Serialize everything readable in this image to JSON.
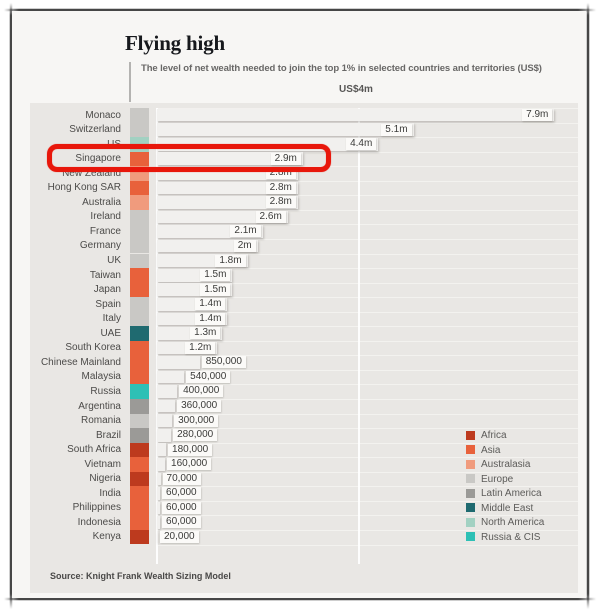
{
  "header": {
    "title": "Flying high",
    "subtitle": "The level of net wealth needed to join the top 1% in selected countries and territories (US$)",
    "gridline_label": "US$4m"
  },
  "source": "Source: Knight Frank Wealth Sizing Model",
  "highlight": {
    "country": "Singapore",
    "box_color": "#e8170b"
  },
  "chart_data": {
    "type": "bar",
    "orientation": "horizontal",
    "title": "Flying high",
    "subtitle": "The level of net wealth needed to join the top 1% in selected countries and territories (US$)",
    "unit": "US$ millions",
    "xlim": [
      0,
      8.4
    ],
    "gridline": {
      "value": 4,
      "label": "US$4m"
    },
    "grid": "single vertical gridline at 4m plus baseline at 0",
    "legend_position": "right-bottom",
    "legend": [
      {
        "label": "Africa",
        "color": "#bd3a1e"
      },
      {
        "label": "Asia",
        "color": "#e8613b"
      },
      {
        "label": "Australasia",
        "color": "#f09b7d"
      },
      {
        "label": "Europe",
        "color": "#c9c8c5"
      },
      {
        "label": "Latin America",
        "color": "#9b9a97"
      },
      {
        "label": "Middle East",
        "color": "#1f6a70"
      },
      {
        "label": "North America",
        "color": "#a2d1c2"
      },
      {
        "label": "Russia & CIS",
        "color": "#2ec0b5"
      }
    ],
    "rows": [
      {
        "country": "Monaco",
        "region": "Europe",
        "value_musd": 7.9,
        "label": "7.9m"
      },
      {
        "country": "Switzerland",
        "region": "Europe",
        "value_musd": 5.1,
        "label": "5.1m"
      },
      {
        "country": "US",
        "region": "North America",
        "value_musd": 4.4,
        "label": "4.4m"
      },
      {
        "country": "Singapore",
        "region": "Asia",
        "value_musd": 2.9,
        "label": "2.9m"
      },
      {
        "country": "New Zealand",
        "region": "Australasia",
        "value_musd": 2.8,
        "label": "2.8m"
      },
      {
        "country": "Hong Kong SAR",
        "region": "Asia",
        "value_musd": 2.8,
        "label": "2.8m"
      },
      {
        "country": "Australia",
        "region": "Australasia",
        "value_musd": 2.8,
        "label": "2.8m"
      },
      {
        "country": "Ireland",
        "region": "Europe",
        "value_musd": 2.6,
        "label": "2.6m"
      },
      {
        "country": "France",
        "region": "Europe",
        "value_musd": 2.1,
        "label": "2.1m"
      },
      {
        "country": "Germany",
        "region": "Europe",
        "value_musd": 2.0,
        "label": "2m"
      },
      {
        "country": "UK",
        "region": "Europe",
        "value_musd": 1.8,
        "label": "1.8m"
      },
      {
        "country": "Taiwan",
        "region": "Asia",
        "value_musd": 1.5,
        "label": "1.5m"
      },
      {
        "country": "Japan",
        "region": "Asia",
        "value_musd": 1.5,
        "label": "1.5m"
      },
      {
        "country": "Spain",
        "region": "Europe",
        "value_musd": 1.4,
        "label": "1.4m"
      },
      {
        "country": "Italy",
        "region": "Europe",
        "value_musd": 1.4,
        "label": "1.4m"
      },
      {
        "country": "UAE",
        "region": "Middle East",
        "value_musd": 1.3,
        "label": "1.3m"
      },
      {
        "country": "South Korea",
        "region": "Asia",
        "value_musd": 1.2,
        "label": "1.2m"
      },
      {
        "country": "Chinese Mainland",
        "region": "Asia",
        "value_musd": 0.85,
        "label": "850,000"
      },
      {
        "country": "Malaysia",
        "region": "Asia",
        "value_musd": 0.54,
        "label": "540,000"
      },
      {
        "country": "Russia",
        "region": "Russia & CIS",
        "value_musd": 0.4,
        "label": "400,000"
      },
      {
        "country": "Argentina",
        "region": "Latin America",
        "value_musd": 0.36,
        "label": "360,000"
      },
      {
        "country": "Romania",
        "region": "Europe",
        "value_musd": 0.3,
        "label": "300,000"
      },
      {
        "country": "Brazil",
        "region": "Latin America",
        "value_musd": 0.28,
        "label": "280,000"
      },
      {
        "country": "South Africa",
        "region": "Africa",
        "value_musd": 0.18,
        "label": "180,000"
      },
      {
        "country": "Vietnam",
        "region": "Asia",
        "value_musd": 0.16,
        "label": "160,000"
      },
      {
        "country": "Nigeria",
        "region": "Africa",
        "value_musd": 0.07,
        "label": "70,000"
      },
      {
        "country": "India",
        "region": "Asia",
        "value_musd": 0.06,
        "label": "60,000"
      },
      {
        "country": "Philippines",
        "region": "Asia",
        "value_musd": 0.06,
        "label": "60,000"
      },
      {
        "country": "Indonesia",
        "region": "Asia",
        "value_musd": 0.06,
        "label": "60,000"
      },
      {
        "country": "Kenya",
        "region": "Africa",
        "value_musd": 0.02,
        "label": "20,000"
      }
    ]
  }
}
